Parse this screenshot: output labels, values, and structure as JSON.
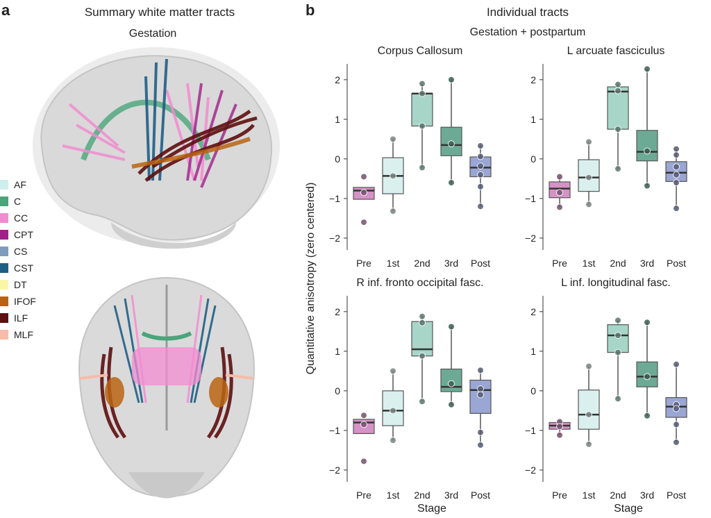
{
  "panel_a": {
    "letter": "a",
    "title": "Summary white matter tracts",
    "subtitle": "Gestation",
    "legend": [
      {
        "label": "AF",
        "color": "#cfeeee"
      },
      {
        "label": "C",
        "color": "#4aa57a"
      },
      {
        "label": "CC",
        "color": "#f28cd0"
      },
      {
        "label": "CPT",
        "color": "#a0208a"
      },
      {
        "label": "CS",
        "color": "#7f9cbc"
      },
      {
        "label": "CST",
        "color": "#1f5f86"
      },
      {
        "label": "DT",
        "color": "#fbf6a6"
      },
      {
        "label": "IFOF",
        "color": "#b96412"
      },
      {
        "label": "ILF",
        "color": "#5e0f0f"
      },
      {
        "label": "MLF",
        "color": "#f7bba8"
      }
    ],
    "views": [
      {
        "name": "lateral-brain-view"
      },
      {
        "name": "posterior-brain-view"
      }
    ]
  },
  "panel_b": {
    "letter": "b",
    "title": "Individual tracts",
    "subtitle": "Gestation + postpartum",
    "ylabel": "Quantitative anisotropy (zero centered)",
    "xlabel": "Stage",
    "stage_colors": {
      "Pre": "#d493c7",
      "1st": "#daf0ee",
      "2nd": "#a7d6c8",
      "3rd": "#6daa95",
      "Post": "#9aa6d3"
    }
  },
  "chart_data": [
    {
      "type": "box",
      "title": "Corpus Callosum",
      "categories": [
        "Pre",
        "1st",
        "2nd",
        "3rd",
        "Post"
      ],
      "ylim": [
        -2.3,
        2.4
      ],
      "yticks": [
        -2,
        -1,
        0,
        1,
        2
      ],
      "boxes": [
        {
          "stage": "Pre",
          "q1": -1.02,
          "median": -0.8,
          "q3": -0.72,
          "whisker_low": -1.02,
          "whisker_high": -0.72,
          "points": [
            -0.85,
            -0.45,
            -1.6
          ]
        },
        {
          "stage": "1st",
          "q1": -0.88,
          "median": -0.43,
          "q3": 0.03,
          "whisker_low": -1.32,
          "whisker_high": 0.5,
          "points": [
            -0.43,
            0.5,
            -1.32
          ]
        },
        {
          "stage": "2nd",
          "q1": 0.83,
          "median": 1.65,
          "q3": 1.65,
          "whisker_low": -0.22,
          "whisker_high": 1.9,
          "points": [
            1.9,
            0.83,
            -0.22,
            1.65
          ]
        },
        {
          "stage": "3rd",
          "q1": 0.08,
          "median": 0.35,
          "q3": 0.8,
          "whisker_low": -0.6,
          "whisker_high": 2.0,
          "points": [
            2.0,
            0.38,
            -0.6
          ]
        },
        {
          "stage": "Post",
          "q1": -0.45,
          "median": -0.22,
          "q3": 0.05,
          "whisker_low": -1.2,
          "whisker_high": 0.35,
          "points": [
            0.33,
            0.06,
            -0.18,
            -0.4,
            -0.7,
            -1.2
          ]
        }
      ]
    },
    {
      "type": "box",
      "title": "L arcuate fasciculus",
      "categories": [
        "Pre",
        "1st",
        "2nd",
        "3rd",
        "Post"
      ],
      "ylim": [
        -2.3,
        2.4
      ],
      "yticks": [
        -2,
        -1,
        0,
        1,
        2
      ],
      "boxes": [
        {
          "stage": "Pre",
          "q1": -0.98,
          "median": -0.75,
          "q3": -0.58,
          "whisker_low": -1.22,
          "whisker_high": -0.45,
          "points": [
            -0.45,
            -0.85,
            -1.22
          ]
        },
        {
          "stage": "1st",
          "q1": -0.82,
          "median": -0.47,
          "q3": -0.02,
          "whisker_low": -1.15,
          "whisker_high": 0.43,
          "points": [
            0.43,
            -0.47,
            -1.15
          ]
        },
        {
          "stage": "2nd",
          "q1": 0.75,
          "median": 1.7,
          "q3": 1.82,
          "whisker_low": -0.25,
          "whisker_high": 1.9,
          "points": [
            1.88,
            1.72,
            0.75,
            -0.25
          ]
        },
        {
          "stage": "3rd",
          "q1": -0.05,
          "median": 0.18,
          "q3": 0.72,
          "whisker_low": -0.68,
          "whisker_high": 2.27,
          "points": [
            2.27,
            0.2,
            -0.68
          ]
        },
        {
          "stage": "Post",
          "q1": -0.57,
          "median": -0.35,
          "q3": -0.07,
          "whisker_low": -1.25,
          "whisker_high": 0.25,
          "points": [
            0.25,
            0.1,
            -0.2,
            -0.4,
            -0.6,
            -1.25
          ]
        }
      ]
    },
    {
      "type": "box",
      "title": "R inf. fronto occipital fasc.",
      "categories": [
        "Pre",
        "1st",
        "2nd",
        "3rd",
        "Post"
      ],
      "ylim": [
        -2.3,
        2.4
      ],
      "yticks": [
        -2,
        -1,
        0,
        1,
        2
      ],
      "boxes": [
        {
          "stage": "Pre",
          "q1": -1.08,
          "median": -0.8,
          "q3": -0.72,
          "whisker_low": -1.08,
          "whisker_high": -0.72,
          "points": [
            -0.62,
            -0.85,
            -1.78
          ]
        },
        {
          "stage": "1st",
          "q1": -0.88,
          "median": -0.5,
          "q3": 0.0,
          "whisker_low": -1.25,
          "whisker_high": 0.5,
          "points": [
            0.5,
            -0.5,
            -1.25
          ]
        },
        {
          "stage": "2nd",
          "q1": 0.88,
          "median": 1.05,
          "q3": 1.75,
          "whisker_low": -0.27,
          "whisker_high": 1.88,
          "points": [
            1.88,
            1.72,
            0.88,
            -0.27
          ]
        },
        {
          "stage": "3rd",
          "q1": -0.02,
          "median": 0.1,
          "q3": 0.55,
          "whisker_low": -0.35,
          "whisker_high": 1.62,
          "points": [
            1.62,
            0.18,
            -0.35
          ]
        },
        {
          "stage": "Post",
          "q1": -0.57,
          "median": 0.02,
          "q3": 0.27,
          "whisker_low": -1.37,
          "whisker_high": 0.52,
          "points": [
            0.52,
            0.05,
            -0.1,
            -1.05,
            -1.37
          ]
        }
      ]
    },
    {
      "type": "box",
      "title": "L inf. longitudinal fasc.",
      "categories": [
        "Pre",
        "1st",
        "2nd",
        "3rd",
        "Post"
      ],
      "ylim": [
        -2.3,
        2.4
      ],
      "yticks": [
        -2,
        -1,
        0,
        1,
        2
      ],
      "boxes": [
        {
          "stage": "Pre",
          "q1": -0.97,
          "median": -0.88,
          "q3": -0.8,
          "whisker_low": -1.12,
          "whisker_high": -0.75,
          "points": [
            -0.78,
            -0.9,
            -1.12
          ]
        },
        {
          "stage": "1st",
          "q1": -0.97,
          "median": -0.6,
          "q3": 0.02,
          "whisker_low": -1.35,
          "whisker_high": 0.62,
          "points": [
            0.62,
            -0.6,
            -1.35
          ]
        },
        {
          "stage": "2nd",
          "q1": 0.97,
          "median": 1.4,
          "q3": 1.67,
          "whisker_low": -0.2,
          "whisker_high": 1.78,
          "points": [
            1.78,
            1.4,
            0.97,
            -0.2
          ]
        },
        {
          "stage": "3rd",
          "q1": 0.1,
          "median": 0.36,
          "q3": 0.73,
          "whisker_low": -0.63,
          "whisker_high": 1.73,
          "points": [
            1.73,
            0.36,
            -0.63
          ]
        },
        {
          "stage": "Post",
          "q1": -0.67,
          "median": -0.4,
          "q3": -0.17,
          "whisker_low": -1.3,
          "whisker_high": 0.67,
          "points": [
            0.67,
            -0.35,
            -0.45,
            -0.85,
            -1.3
          ]
        }
      ]
    }
  ]
}
